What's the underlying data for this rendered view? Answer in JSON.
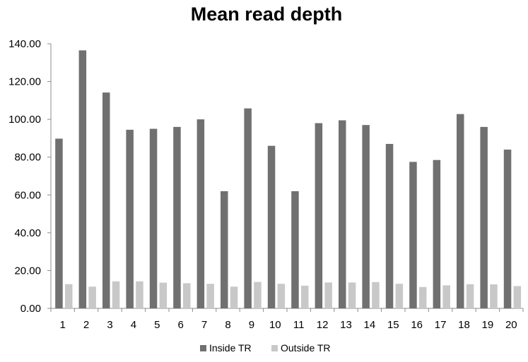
{
  "chart_data": {
    "type": "bar",
    "title": "Mean read depth",
    "xlabel": "",
    "ylabel": "",
    "categories": [
      "1",
      "2",
      "3",
      "4",
      "5",
      "6",
      "7",
      "8",
      "9",
      "10",
      "11",
      "12",
      "13",
      "14",
      "15",
      "16",
      "17",
      "18",
      "19",
      "20"
    ],
    "series": [
      {
        "name": "Inside TR",
        "color": "#707070",
        "values": [
          89.8,
          136.5,
          114.2,
          94.5,
          95.0,
          96.0,
          100.0,
          62.0,
          105.8,
          86.0,
          62.0,
          98.0,
          99.5,
          97.0,
          87.0,
          77.5,
          78.5,
          102.8,
          96.0,
          84.0
        ]
      },
      {
        "name": "Outside TR",
        "color": "#c8c8c8",
        "values": [
          12.8,
          11.5,
          14.3,
          14.3,
          13.6,
          13.3,
          13.0,
          11.5,
          14.0,
          13.0,
          12.0,
          13.7,
          13.7,
          13.9,
          13.0,
          11.3,
          12.2,
          12.8,
          12.7,
          11.8
        ]
      }
    ],
    "ylim": [
      0,
      140
    ],
    "yticks": [
      "0.00",
      "20.00",
      "40.00",
      "60.00",
      "80.00",
      "100.00",
      "120.00",
      "140.00"
    ],
    "ytick_values": [
      0,
      20,
      40,
      60,
      80,
      100,
      120,
      140
    ],
    "grid": false,
    "legend": "bottom"
  }
}
